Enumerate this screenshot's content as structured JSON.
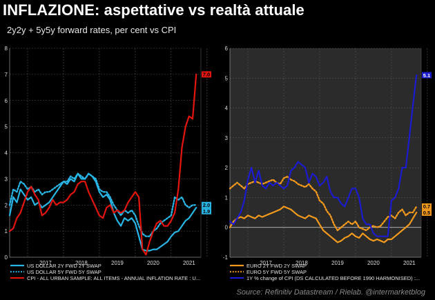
{
  "header": {
    "title": "INFLAZIONE: aspettative vs realtà attuale",
    "subtitle": "2y2y + 5y5y forward rates, per cent vs CPI"
  },
  "source": "Source: Refinitiv Datastream / Rielab. @intermarketblog",
  "colors": {
    "background": "#000000",
    "shaded_panel": "#2b2b2b",
    "us_2y2y": "#27b6e6",
    "us_5y5y": "#27b6e6",
    "us_cpi": "#e3150c",
    "eu_2y2y": "#f39a1d",
    "eu_5y5y": "#f39a1d",
    "eu_cpi": "#1b1bd0"
  },
  "chart_data": [
    {
      "type": "line",
      "panel": "left",
      "x_tick_labels": [
        "2017",
        "2018",
        "2019",
        "2020",
        "2021"
      ],
      "xlim": [
        2016.5,
        2021.83
      ],
      "ylim": [
        0,
        8
      ],
      "y_ticks": [
        0,
        1,
        2,
        3,
        4,
        5,
        6,
        7,
        8
      ],
      "grid": true,
      "legend_position": "bottom",
      "end_labels": [
        {
          "text": "7.0",
          "series": 2
        },
        {
          "text": "2.0",
          "series": 1
        },
        {
          "text": "1.9",
          "series": 0
        }
      ],
      "series": [
        {
          "name": "US DOLLAR 2Y FWD 2Y SWAP",
          "style": "solid",
          "x": [
            2016.5,
            2016.6,
            2016.7,
            2016.8,
            2016.9,
            2017.0,
            2017.1,
            2017.2,
            2017.3,
            2017.4,
            2017.5,
            2017.6,
            2017.7,
            2017.8,
            2017.9,
            2018.0,
            2018.1,
            2018.2,
            2018.3,
            2018.4,
            2018.5,
            2018.6,
            2018.7,
            2018.8,
            2018.9,
            2019.0,
            2019.1,
            2019.2,
            2019.3,
            2019.4,
            2019.5,
            2019.6,
            2019.7,
            2019.8,
            2019.9,
            2020.0,
            2020.1,
            2020.2,
            2020.3,
            2020.4,
            2020.5,
            2020.6,
            2020.7,
            2020.8,
            2020.9,
            2021.0,
            2021.1,
            2021.2,
            2021.3,
            2021.4,
            2021.5,
            2021.6,
            2021.7
          ],
          "values": [
            1.6,
            2.3,
            2.1,
            2.6,
            2.4,
            2.2,
            2.3,
            2.0,
            2.1,
            1.9,
            2.0,
            2.1,
            2.3,
            2.5,
            2.7,
            2.9,
            2.8,
            3.0,
            2.9,
            3.2,
            3.0,
            3.0,
            3.2,
            3.1,
            2.9,
            2.5,
            2.3,
            2.4,
            2.2,
            1.7,
            1.4,
            1.2,
            1.5,
            1.4,
            1.5,
            1.3,
            0.8,
            0.3,
            0.25,
            0.25,
            0.3,
            0.3,
            0.4,
            0.5,
            0.6,
            0.8,
            0.95,
            1.0,
            1.2,
            1.4,
            1.5,
            1.7,
            1.9
          ]
        },
        {
          "name": "US DOLLAR 5Y FWD 5Y SWAP",
          "style": "dotted",
          "x": [
            2016.5,
            2016.6,
            2016.7,
            2016.8,
            2016.9,
            2017.0,
            2017.1,
            2017.2,
            2017.3,
            2017.4,
            2017.5,
            2017.6,
            2017.7,
            2017.8,
            2017.9,
            2018.0,
            2018.1,
            2018.2,
            2018.3,
            2018.4,
            2018.5,
            2018.6,
            2018.7,
            2018.8,
            2018.9,
            2019.0,
            2019.1,
            2019.2,
            2019.3,
            2019.4,
            2019.5,
            2019.6,
            2019.7,
            2019.8,
            2019.9,
            2020.0,
            2020.1,
            2020.2,
            2020.3,
            2020.4,
            2020.5,
            2020.6,
            2020.7,
            2020.8,
            2020.9,
            2021.0,
            2021.1,
            2021.2,
            2021.3,
            2021.4,
            2021.5,
            2021.6,
            2021.7
          ],
          "values": [
            2.0,
            2.6,
            2.5,
            2.9,
            2.8,
            2.6,
            2.7,
            2.5,
            2.6,
            2.4,
            2.5,
            2.5,
            2.6,
            2.7,
            2.8,
            2.9,
            2.9,
            3.1,
            3.0,
            3.2,
            3.1,
            3.0,
            3.2,
            3.1,
            3.0,
            2.6,
            2.5,
            2.5,
            2.3,
            2.0,
            1.8,
            1.6,
            1.8,
            1.7,
            1.8,
            1.6,
            1.2,
            0.9,
            0.8,
            0.8,
            1.0,
            1.1,
            1.3,
            1.4,
            1.5,
            1.6,
            2.3,
            2.2,
            2.3,
            2.0,
            1.9,
            2.0,
            2.0
          ]
        },
        {
          "name": "CPI - ALL URBAN SAMPLE: ALL ITEMS - ANNUAL INFLATION RATE : U...",
          "style": "solid",
          "x": [
            2016.5,
            2016.6,
            2016.7,
            2016.8,
            2016.9,
            2017.0,
            2017.1,
            2017.2,
            2017.3,
            2017.4,
            2017.5,
            2017.6,
            2017.7,
            2017.8,
            2017.9,
            2018.0,
            2018.1,
            2018.2,
            2018.3,
            2018.4,
            2018.5,
            2018.6,
            2018.7,
            2018.8,
            2018.9,
            2019.0,
            2019.1,
            2019.2,
            2019.3,
            2019.4,
            2019.5,
            2019.6,
            2019.7,
            2019.8,
            2019.9,
            2020.0,
            2020.1,
            2020.2,
            2020.3,
            2020.4,
            2020.5,
            2020.6,
            2020.7,
            2020.8,
            2020.9,
            2021.0,
            2021.1,
            2021.2,
            2021.3,
            2021.4,
            2021.5,
            2021.6,
            2021.7
          ],
          "values": [
            1.0,
            1.1,
            1.5,
            1.7,
            2.1,
            2.5,
            2.7,
            2.4,
            2.2,
            1.6,
            1.7,
            1.9,
            2.2,
            2.0,
            2.1,
            2.1,
            2.2,
            2.4,
            2.5,
            2.8,
            2.9,
            2.9,
            2.5,
            2.2,
            1.9,
            1.6,
            1.5,
            1.9,
            2.0,
            1.7,
            1.8,
            1.7,
            1.8,
            2.1,
            2.3,
            2.5,
            2.3,
            0.3,
            0.1,
            0.6,
            1.0,
            1.3,
            1.4,
            1.2,
            1.2,
            1.4,
            1.7,
            2.6,
            4.2,
            5.0,
            5.4,
            5.3,
            7.0
          ]
        }
      ]
    },
    {
      "type": "line",
      "panel": "right",
      "x_tick_labels": [
        "2017",
        "2018",
        "2019",
        "2020",
        "2021"
      ],
      "xlim": [
        2016.5,
        2021.83
      ],
      "ylim": [
        -1,
        6
      ],
      "y_ticks": [
        -1,
        0,
        1,
        2,
        3,
        4,
        5,
        6
      ],
      "grid": true,
      "legend_position": "bottom",
      "end_labels": [
        {
          "text": "5.1",
          "series": 2
        },
        {
          "text": "0.7",
          "series": 1
        },
        {
          "text": "0.5",
          "series": 0
        }
      ],
      "series": [
        {
          "name": "EURO 2Y FWD 2Y SWAP",
          "style": "solid",
          "x": [
            2016.5,
            2016.6,
            2016.7,
            2016.8,
            2016.9,
            2017.0,
            2017.1,
            2017.2,
            2017.3,
            2017.4,
            2017.5,
            2017.6,
            2017.7,
            2017.8,
            2017.9,
            2018.0,
            2018.1,
            2018.2,
            2018.3,
            2018.4,
            2018.5,
            2018.6,
            2018.7,
            2018.8,
            2018.9,
            2019.0,
            2019.1,
            2019.2,
            2019.3,
            2019.4,
            2019.5,
            2019.6,
            2019.7,
            2019.8,
            2019.9,
            2020.0,
            2020.1,
            2020.2,
            2020.3,
            2020.4,
            2020.5,
            2020.6,
            2020.7,
            2020.8,
            2020.9,
            2021.0,
            2021.1,
            2021.2,
            2021.3,
            2021.4,
            2021.5,
            2021.6,
            2021.7
          ],
          "values": [
            0.0,
            0.2,
            0.3,
            0.35,
            0.3,
            0.4,
            0.35,
            0.3,
            0.4,
            0.35,
            0.4,
            0.45,
            0.5,
            0.55,
            0.6,
            0.7,
            0.65,
            0.6,
            0.5,
            0.4,
            0.35,
            0.3,
            0.4,
            0.35,
            0.3,
            0.1,
            -0.1,
            -0.2,
            -0.3,
            -0.4,
            -0.5,
            -0.45,
            -0.35,
            -0.3,
            -0.2,
            -0.3,
            -0.35,
            -0.2,
            -0.3,
            -0.4,
            -0.45,
            -0.4,
            -0.45,
            -0.5,
            -0.4,
            -0.4,
            -0.3,
            -0.2,
            -0.1,
            0.0,
            0.1,
            0.3,
            0.5
          ]
        },
        {
          "name": "EURO 5Y FWD 5Y SWAP",
          "style": "dotted",
          "x": [
            2016.5,
            2016.6,
            2016.7,
            2016.8,
            2016.9,
            2017.0,
            2017.1,
            2017.2,
            2017.3,
            2017.4,
            2017.5,
            2017.6,
            2017.7,
            2017.8,
            2017.9,
            2018.0,
            2018.1,
            2018.2,
            2018.3,
            2018.4,
            2018.5,
            2018.6,
            2018.7,
            2018.8,
            2018.9,
            2019.0,
            2019.1,
            2019.2,
            2019.3,
            2019.4,
            2019.5,
            2019.6,
            2019.7,
            2019.8,
            2019.9,
            2020.0,
            2020.1,
            2020.2,
            2020.3,
            2020.4,
            2020.5,
            2020.6,
            2020.7,
            2020.8,
            2020.9,
            2021.0,
            2021.1,
            2021.2,
            2021.3,
            2021.4,
            2021.5,
            2021.6,
            2021.7
          ],
          "values": [
            1.3,
            1.4,
            1.5,
            1.4,
            1.3,
            1.45,
            1.5,
            1.55,
            1.5,
            1.45,
            1.5,
            1.55,
            1.6,
            1.5,
            1.45,
            1.65,
            1.7,
            1.6,
            1.55,
            1.45,
            1.4,
            1.35,
            1.45,
            1.3,
            1.2,
            0.9,
            0.8,
            0.55,
            0.4,
            0.1,
            -0.1,
            0.0,
            0.1,
            0.2,
            0.1,
            0.2,
            0.0,
            -0.05,
            -0.1,
            0.0,
            0.05,
            0.0,
            0.05,
            0.2,
            0.35,
            0.4,
            0.3,
            0.5,
            0.6,
            0.4,
            0.5,
            0.5,
            0.7
          ]
        },
        {
          "name": "1Y % change of CPI (DS CALCULATED BEFORE 1990 HARMONISED) :...",
          "style": "solid",
          "x": [
            2016.5,
            2016.6,
            2016.7,
            2016.8,
            2016.9,
            2017.0,
            2017.1,
            2017.2,
            2017.3,
            2017.4,
            2017.5,
            2017.6,
            2017.7,
            2017.8,
            2017.9,
            2018.0,
            2018.1,
            2018.2,
            2018.3,
            2018.4,
            2018.5,
            2018.6,
            2018.7,
            2018.8,
            2018.9,
            2019.0,
            2019.1,
            2019.2,
            2019.3,
            2019.4,
            2019.5,
            2019.6,
            2019.7,
            2019.8,
            2019.9,
            2020.0,
            2020.1,
            2020.2,
            2020.3,
            2020.4,
            2020.5,
            2020.6,
            2020.7,
            2020.8,
            2020.9,
            2021.0,
            2021.1,
            2021.2,
            2021.3,
            2021.4,
            2021.5,
            2021.6,
            2021.7
          ],
          "values": [
            0.2,
            0.1,
            0.3,
            0.5,
            0.9,
            1.6,
            2.0,
            1.5,
            1.9,
            1.4,
            1.3,
            1.5,
            1.4,
            1.5,
            1.4,
            1.3,
            1.4,
            1.9,
            2.0,
            2.2,
            2.1,
            2.0,
            1.5,
            1.8,
            1.7,
            1.4,
            1.5,
            1.7,
            1.2,
            1.0,
            1.0,
            0.8,
            0.7,
            1.0,
            1.3,
            1.3,
            1.0,
            0.3,
            0.1,
            0.1,
            -0.2,
            -0.3,
            -0.3,
            -0.3,
            -0.3,
            0.9,
            1.0,
            1.3,
            2.0,
            2.0,
            3.0,
            4.1,
            5.1
          ]
        }
      ]
    }
  ]
}
